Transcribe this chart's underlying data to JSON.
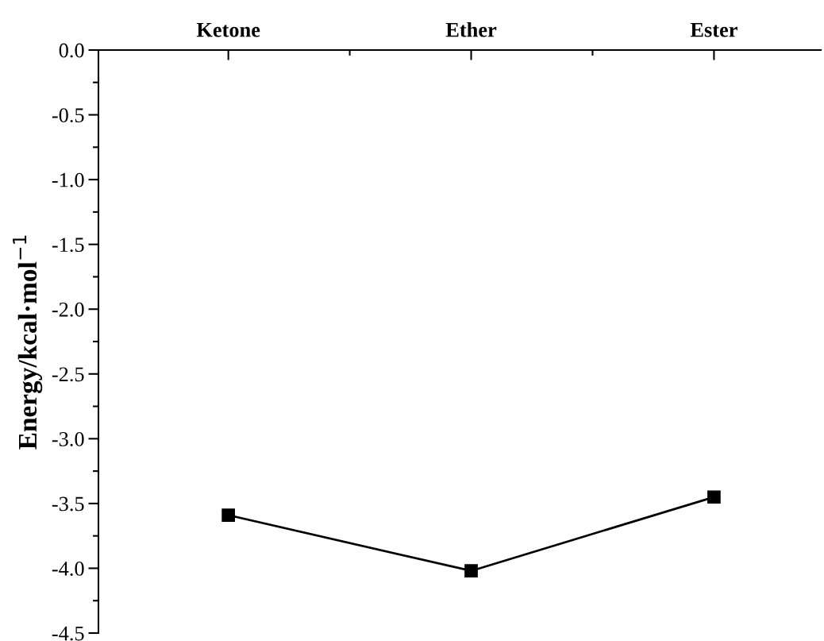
{
  "chart_data": {
    "type": "line",
    "ylabel": "Energy/kcal·mol$^{−1}$",
    "categories": [
      "Ketone",
      "Ether",
      "Ester"
    ],
    "series": [
      {
        "color": "#000000",
        "values": [
          -3.59,
          -4.02,
          -3.45
        ]
      }
    ],
    "ylim": [
      -4.5,
      0
    ],
    "yticks": [
      {
        "value": 0,
        "label": "0.0"
      },
      {
        "value": -0.5,
        "label": "-0.5"
      },
      {
        "value": -1.0,
        "label": "-1.0"
      },
      {
        "value": -1.5,
        "label": "-1.5"
      },
      {
        "value": -2.0,
        "label": "-2.0"
      },
      {
        "value": -2.5,
        "label": "-2.5"
      },
      {
        "value": -3.0,
        "label": "-3.0"
      },
      {
        "value": -3.5,
        "label": "-3.5"
      },
      {
        "value": -4.0,
        "label": "-4.0"
      },
      {
        "value": -4.5,
        "label": "-4.5"
      }
    ],
    "marker": "square",
    "line_style": "solid",
    "grid": false,
    "legend": false
  }
}
